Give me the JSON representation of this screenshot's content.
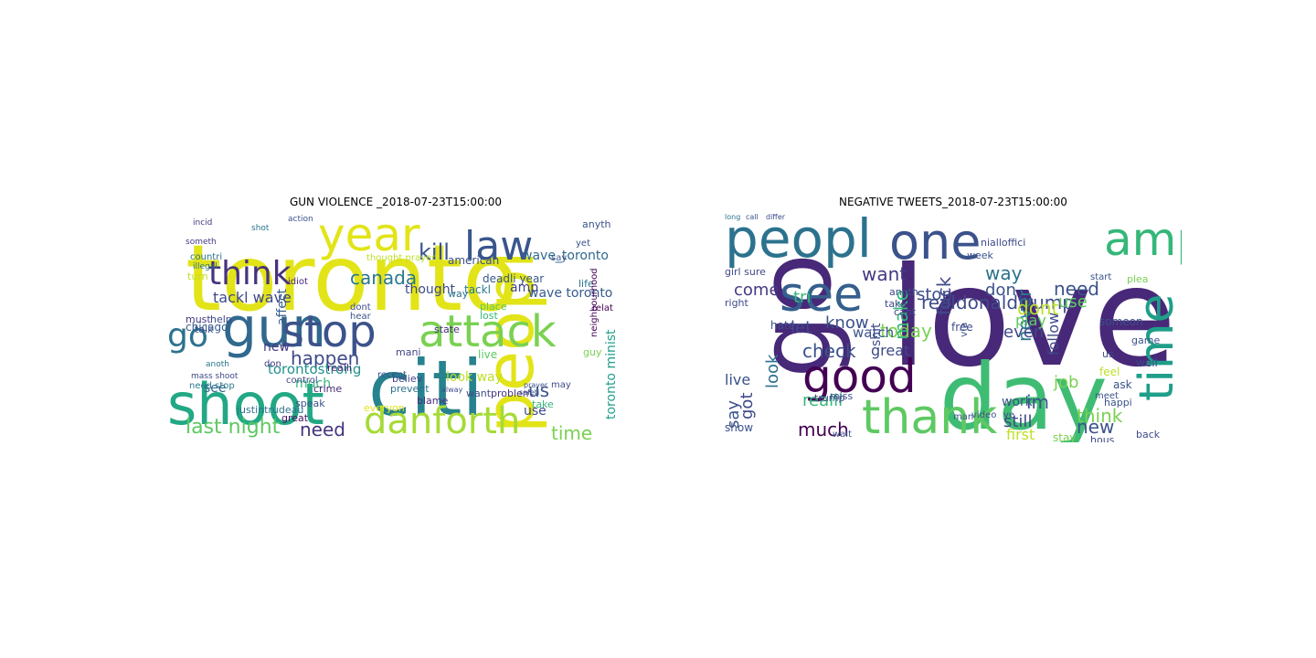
{
  "figure": {
    "panels": [
      {
        "title": "GUN VIOLENCE _2018-07-23T15:00:00",
        "words": [
          {
            "text": "toronto",
            "c": "#e2e418"
          },
          {
            "text": "peopl",
            "c": "#e2e418"
          },
          {
            "text": "citi",
            "c": "#26828e"
          },
          {
            "text": "shoot",
            "c": "#22a884"
          },
          {
            "text": "gun",
            "c": "#31688e"
          },
          {
            "text": "stop",
            "c": "#3b528b"
          },
          {
            "text": "attack",
            "c": "#7ad151"
          },
          {
            "text": "danforth",
            "c": "#a5db36"
          },
          {
            "text": "year",
            "c": "#e2e418"
          },
          {
            "text": "law",
            "c": "#39568c"
          },
          {
            "text": "think",
            "c": "#46337e"
          },
          {
            "text": "go",
            "c": "#2c728e"
          },
          {
            "text": "kill",
            "c": "#3b528b"
          },
          {
            "text": "canada",
            "c": "#2a788e"
          },
          {
            "text": "happen",
            "c": "#3e4a89"
          },
          {
            "text": "last night",
            "c": "#5ec962"
          },
          {
            "text": "need",
            "c": "#46337e"
          },
          {
            "text": "time",
            "c": "#7ad151"
          },
          {
            "text": "us",
            "c": "#3b528b"
          },
          {
            "text": "torontostrong",
            "c": "#21918c"
          },
          {
            "text": "wave toronto",
            "c": "#365c8d"
          },
          {
            "text": "tackl wave",
            "c": "#3e4a89"
          },
          {
            "text": "look way",
            "c": "#bddf26"
          },
          {
            "text": "toronto minist",
            "c": "#1f9e89"
          },
          {
            "text": "wave_toronto",
            "c": "#31688e"
          },
          {
            "text": "thought",
            "c": "#3e4a89"
          },
          {
            "text": "amp",
            "c": "#404688"
          },
          {
            "text": "use",
            "c": "#3e4a89"
          },
          {
            "text": "see",
            "c": "#31688e"
          },
          {
            "text": "new",
            "c": "#443983"
          },
          {
            "text": "much",
            "c": "#35b779"
          },
          {
            "text": "chicago",
            "c": "#365c8d"
          },
          {
            "text": "affect",
            "c": "#355f8d"
          },
          {
            "text": "deadli year",
            "c": "#38588c"
          },
          {
            "text": "tackl",
            "c": "#2a788e"
          },
          {
            "text": "american",
            "c": "#3b528b"
          },
          {
            "text": "way",
            "c": "#2c728e"
          },
          {
            "text": "justintrudeau",
            "c": "#2c728e"
          },
          {
            "text": "believ",
            "c": "#404688"
          },
          {
            "text": "prevent",
            "c": "#2c728e"
          },
          {
            "text": "problem",
            "c": "#46337e"
          },
          {
            "text": "take",
            "c": "#35b779"
          },
          {
            "text": "want",
            "c": "#3e4a89"
          },
          {
            "text": "live",
            "c": "#5ec962"
          },
          {
            "text": "blame",
            "c": "#472d7b"
          },
          {
            "text": "crime",
            "c": "#482878"
          },
          {
            "text": "mani",
            "c": "#404688"
          },
          {
            "text": "guy",
            "c": "#7ad151"
          },
          {
            "text": "life",
            "c": "#2c728e"
          },
          {
            "text": "realli",
            "c": "#482878"
          },
          {
            "text": "great",
            "c": "#471164"
          },
          {
            "text": "speak",
            "c": "#3b528b"
          },
          {
            "text": "everyon",
            "c": "#e2e418"
          },
          {
            "text": "help",
            "c": "#3e4a89"
          },
          {
            "text": "must",
            "c": "#443983"
          },
          {
            "text": "talk",
            "c": "#3b528b"
          },
          {
            "text": "incid",
            "c": "#443983"
          },
          {
            "text": "action",
            "c": "#3b528b"
          },
          {
            "text": "shot",
            "c": "#2a788e"
          },
          {
            "text": "someth",
            "c": "#443983"
          },
          {
            "text": "countri",
            "c": "#2c728e"
          },
          {
            "text": "illegal",
            "c": "#2c728e"
          },
          {
            "text": "turn",
            "c": "#c2df23"
          },
          {
            "text": "idiot",
            "c": "#482878"
          },
          {
            "text": "state",
            "c": "#472d7b"
          },
          {
            "text": "dont",
            "c": "#3e4a89"
          },
          {
            "text": "hear",
            "c": "#3b528b"
          },
          {
            "text": "place",
            "c": "#5ec962"
          },
          {
            "text": "lost",
            "c": "#35b779"
          },
          {
            "text": "yet",
            "c": "#3b528b"
          },
          {
            "text": "anyth",
            "c": "#3b528b"
          },
          {
            "text": "relat",
            "c": "#440154"
          },
          {
            "text": "neighbourhood",
            "c": "#440154"
          },
          {
            "text": "recent",
            "c": "#3b528b"
          },
          {
            "text": "control",
            "c": "#3e4a89"
          },
          {
            "text": "don",
            "c": "#443983"
          },
          {
            "text": "anoth",
            "c": "#2a788e"
          },
          {
            "text": "need stop",
            "c": "#2a788e"
          },
          {
            "text": "mass shoot",
            "c": "#3e4a89"
          },
          {
            "text": "thought prayer",
            "c": "#bddf26"
          },
          {
            "text": "say",
            "c": "#3b528b"
          },
          {
            "text": "may",
            "c": "#3e4a89"
          },
          {
            "text": "alway",
            "c": "#3e4a89"
          },
          {
            "text": "prayer",
            "c": "#3b528b"
          },
          {
            "text": "safeti",
            "c": "#3b528b"
          }
        ]
      },
      {
        "title": "NEGATIVE TWEETS_2018-07-23T15:00:00",
        "words": [
          {
            "text": "love",
            "c": "#482878"
          },
          {
            "text": "day",
            "c": "#3fbc73"
          },
          {
            "text": "go",
            "c": "#482878"
          },
          {
            "text": "peopl",
            "c": "#2c728e"
          },
          {
            "text": "one",
            "c": "#3b528b"
          },
          {
            "text": "amp",
            "c": "#35b779"
          },
          {
            "text": "see",
            "c": "#355f8d"
          },
          {
            "text": "time",
            "c": "#1f9e89"
          },
          {
            "text": "good",
            "c": "#440154"
          },
          {
            "text": "thank",
            "c": "#5ec962"
          },
          {
            "text": "know",
            "c": "#3b528b"
          },
          {
            "text": "realdonaldtrump",
            "c": "#3e4a89"
          },
          {
            "text": "check",
            "c": "#3b528b"
          },
          {
            "text": "today",
            "c": "#7ad151"
          },
          {
            "text": "make",
            "c": "#35b779"
          },
          {
            "text": "fuck",
            "c": "#3e4a89"
          },
          {
            "text": "want",
            "c": "#443983"
          },
          {
            "text": "stop",
            "c": "#3e4a89"
          },
          {
            "text": "come",
            "c": "#443983"
          },
          {
            "text": "tri",
            "c": "#35b779"
          },
          {
            "text": "let",
            "c": "#3e4a89"
          },
          {
            "text": "way",
            "c": "#2c728e"
          },
          {
            "text": "don",
            "c": "#3b528b"
          },
          {
            "text": "need",
            "c": "#3b528b"
          },
          {
            "text": "use",
            "c": "#5ec962"
          },
          {
            "text": "never",
            "c": "#2a788e"
          },
          {
            "text": "follow",
            "c": "#3e4a89"
          },
          {
            "text": "job",
            "c": "#7ad151"
          },
          {
            "text": "new",
            "c": "#3b528b"
          },
          {
            "text": "im",
            "c": "#3b528b"
          },
          {
            "text": "think",
            "c": "#7ad151"
          },
          {
            "text": "even",
            "c": "#3e4a89"
          },
          {
            "text": "dont",
            "c": "#bddf26"
          },
          {
            "text": "play",
            "c": "#5ec962"
          },
          {
            "text": "still",
            "c": "#3e4a89"
          },
          {
            "text": "great",
            "c": "#3e4a89"
          },
          {
            "text": "watch",
            "c": "#3b528b"
          },
          {
            "text": "much",
            "c": "#440154"
          },
          {
            "text": "look",
            "c": "#2c728e"
          },
          {
            "text": "realli",
            "c": "#35b779"
          },
          {
            "text": "say",
            "c": "#3b528b"
          },
          {
            "text": "got",
            "c": "#3e4a89"
          },
          {
            "text": "live",
            "c": "#3b528b"
          },
          {
            "text": "work",
            "c": "#3b528b"
          },
          {
            "text": "first",
            "c": "#bddf26"
          },
          {
            "text": "stay",
            "c": "#7ad151"
          },
          {
            "text": "show",
            "c": "#3b528b"
          },
          {
            "text": "shit",
            "c": "#3e4a89"
          },
          {
            "text": "free",
            "c": "#3e4a89"
          },
          {
            "text": "via",
            "c": "#3b528b"
          },
          {
            "text": "someon",
            "c": "#3b528b"
          },
          {
            "text": "well",
            "c": "#3e4a89"
          },
          {
            "text": "ask",
            "c": "#3b528b"
          },
          {
            "text": "happi",
            "c": "#3b528b"
          },
          {
            "text": "us",
            "c": "#3e4a89"
          },
          {
            "text": "feel",
            "c": "#bddf26"
          },
          {
            "text": "hate",
            "c": "#3b528b"
          },
          {
            "text": "video",
            "c": "#3b528b"
          },
          {
            "text": "game",
            "c": "#3b528b"
          },
          {
            "text": "nialloffici",
            "c": "#3e4a89"
          },
          {
            "text": "week",
            "c": "#3b528b"
          },
          {
            "text": "anoth",
            "c": "#3e4a89"
          },
          {
            "text": "trump",
            "c": "#3e4a89"
          },
          {
            "text": "miss",
            "c": "#3b528b"
          },
          {
            "text": "right",
            "c": "#3e4a89"
          },
          {
            "text": "girl sure",
            "c": "#3e4a89"
          },
          {
            "text": "back",
            "c": "#3e4a89"
          },
          {
            "text": "hous",
            "c": "#3e4a89"
          },
          {
            "text": "ye",
            "c": "#3e4a89"
          },
          {
            "text": "meet",
            "c": "#3b528b"
          },
          {
            "text": "start",
            "c": "#3b528b"
          },
          {
            "text": "plea",
            "c": "#7ad151"
          },
          {
            "text": "wait",
            "c": "#3b528b"
          },
          {
            "text": "man",
            "c": "#3b528b"
          },
          {
            "text": "take",
            "c": "#3e4a89"
          },
          {
            "text": "cant",
            "c": "#3e4a89"
          },
          {
            "text": "long",
            "c": "#2c728e"
          },
          {
            "text": "call",
            "c": "#3b528b"
          },
          {
            "text": "differ",
            "c": "#3e4a89"
          }
        ]
      }
    ]
  }
}
